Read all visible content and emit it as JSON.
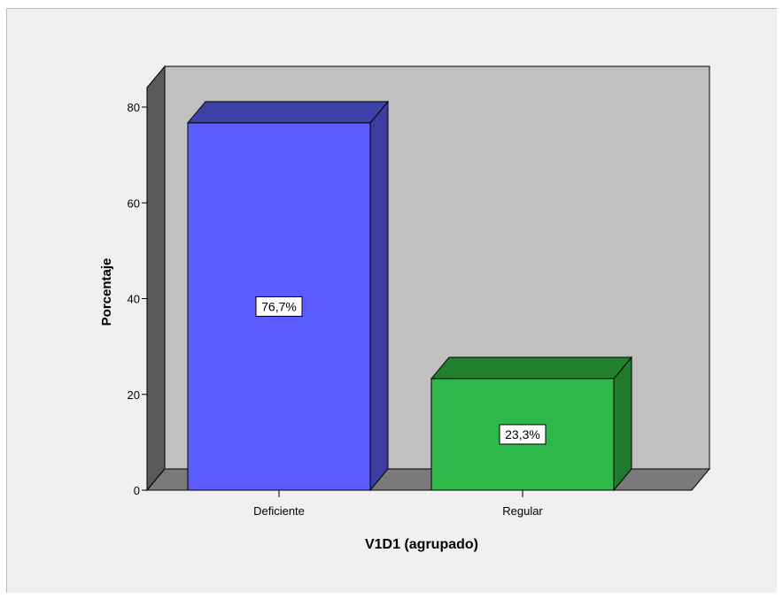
{
  "chart_data": {
    "type": "bar",
    "title": "",
    "xlabel": "V1D1 (agrupado)",
    "ylabel": "Porcentaje",
    "ylim": [
      0,
      80
    ],
    "yticks": [
      "0",
      "20",
      "40",
      "60",
      "80"
    ],
    "categories": [
      "Deficiente",
      "Regular"
    ],
    "values": [
      76.7,
      23.3
    ],
    "data_labels": [
      "76,7%",
      "23,3%"
    ],
    "grid": false,
    "style": "3d",
    "colors": {
      "bar_fronts": [
        "#5a5cff",
        "#2fb84a"
      ],
      "bar_tops": [
        "#3d40a6",
        "#22802f"
      ],
      "bar_sides": [
        "#3b3ea0",
        "#1f7a2c"
      ],
      "back_wall": "#c0c0c0",
      "side_wall": "#5a5a5a",
      "floor": "#7a7a7a",
      "frame_background": "#f0f0f0"
    }
  }
}
